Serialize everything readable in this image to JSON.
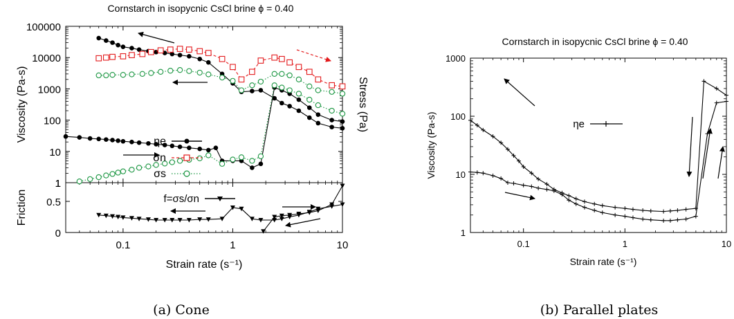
{
  "chart_data": [
    {
      "type": "line",
      "title": "Cornstarch in isopycnic CsCl brine ϕ = 0.40",
      "xlabel": "Strain rate (s⁻¹)",
      "ylabel": "Viscosity (Pa-s)",
      "y2label": "Stress (Pa)",
      "xscale": "log",
      "xlim": [
        0.03,
        10
      ],
      "yscale": "log",
      "ylim": [
        1,
        100000
      ],
      "xticks": [
        "0.1",
        "1",
        "10"
      ],
      "yticks": [
        "1",
        "10",
        "100",
        "1000",
        "10000",
        "100000"
      ],
      "series": [
        {
          "name": "ηe",
          "color": "#000000",
          "marker": "filled-circle",
          "dash": "solid",
          "x": [
            0.06,
            0.07,
            0.08,
            0.09,
            0.1,
            0.12,
            0.14,
            0.17,
            0.2,
            0.24,
            0.28,
            0.33,
            0.4,
            0.5,
            0.6,
            0.8,
            1.0,
            1.2,
            1.5,
            1.8,
            2.4,
            2.8,
            3.3,
            4.0,
            5.0,
            6.0,
            8.0,
            10.0
          ],
          "y": [
            42000,
            35000,
            30000,
            25000,
            22000,
            20000,
            18000,
            16000,
            15000,
            14000,
            13000,
            12000,
            11000,
            9000,
            7000,
            3000,
            1500,
            800,
            850,
            900,
            500,
            350,
            280,
            200,
            120,
            80,
            60,
            55
          ]
        },
        {
          "name": "σn",
          "color": "#e31a1c",
          "marker": "open-square",
          "dash": "dashed",
          "x": [
            0.06,
            0.07,
            0.08,
            0.1,
            0.12,
            0.15,
            0.18,
            0.22,
            0.27,
            0.33,
            0.4,
            0.5,
            0.6,
            0.8,
            1.0,
            1.2,
            1.5,
            1.8,
            2.4,
            2.8,
            3.3,
            4.0,
            5.0,
            6.0,
            8.0,
            10.0
          ],
          "y": [
            9500,
            10000,
            10500,
            11000,
            12000,
            13000,
            15000,
            17000,
            18000,
            19000,
            18000,
            16000,
            14000,
            9000,
            5000,
            2000,
            3500,
            8000,
            10000,
            9000,
            7000,
            5000,
            3500,
            2000,
            1300,
            1200
          ]
        },
        {
          "name": "σs",
          "color": "#1a9641",
          "marker": "open-circle",
          "dash": "dotted",
          "x": [
            0.06,
            0.07,
            0.08,
            0.1,
            0.12,
            0.15,
            0.18,
            0.22,
            0.27,
            0.33,
            0.4,
            0.5,
            0.6,
            0.8,
            1.0,
            1.2,
            1.5,
            1.8,
            2.4,
            2.8,
            3.3,
            4.0,
            5.0,
            6.0,
            8.0,
            10.0
          ],
          "y": [
            2700,
            2700,
            2800,
            2800,
            2900,
            3000,
            3200,
            3500,
            3800,
            4000,
            3700,
            3300,
            2900,
            2300,
            1800,
            900,
            1300,
            1700,
            3000,
            3000,
            2700,
            2000,
            1200,
            900,
            800,
            700
          ]
        },
        {
          "name": "",
          "color": "#000000",
          "marker": "filled-circle",
          "dash": "solid",
          "x": [
            0.03,
            0.04,
            0.05,
            0.06,
            0.07,
            0.08,
            0.09,
            0.1,
            0.12,
            0.14,
            0.17,
            0.2,
            0.24,
            0.28,
            0.33,
            0.4,
            0.5,
            0.6,
            0.7,
            0.8,
            1.0,
            1.2,
            1.5,
            1.8,
            2.4,
            2.8,
            3.3,
            4.0,
            5.0,
            6.0,
            8.0,
            10.0
          ],
          "y": [
            30,
            28,
            26,
            25,
            24,
            23,
            22,
            21,
            20,
            19,
            18,
            17,
            16,
            15,
            14,
            13,
            12,
            11,
            13,
            5,
            5,
            5,
            3,
            4,
            1100,
            900,
            700,
            450,
            250,
            150,
            100,
            90
          ]
        },
        {
          "name": "",
          "color": "#1a9641",
          "marker": "open-circle",
          "dash": "dotted",
          "x": [
            0.04,
            0.05,
            0.06,
            0.07,
            0.08,
            0.09,
            0.1,
            0.12,
            0.14,
            0.17,
            0.2,
            0.24,
            0.28,
            0.33,
            0.4,
            0.5,
            0.6,
            0.8,
            1.0,
            1.2,
            1.5,
            1.8,
            2.4,
            2.8,
            3.3,
            4.0,
            5.0,
            6.0,
            8.0,
            10.0
          ],
          "y": [
            1.1,
            1.3,
            1.5,
            1.7,
            1.9,
            2.1,
            2.3,
            2.6,
            3.0,
            3.3,
            3.7,
            4.1,
            4.5,
            5.0,
            5.4,
            6.0,
            7.5,
            4.0,
            5.5,
            6.5,
            5.0,
            7.0,
            1300,
            1100,
            900,
            700,
            450,
            300,
            200,
            160
          ]
        }
      ],
      "legend": [
        "ηe",
        "σn",
        "σs"
      ],
      "subplot": {
        "type": "line",
        "ylabel": "Friction",
        "ylim": [
          0,
          0.8
        ],
        "yticks": [
          "0",
          "0.5",
          "1"
        ],
        "series": [
          {
            "name": "f=σs/σn",
            "color": "#000000",
            "marker": "filled-triangle-down",
            "dash": "solid",
            "x": [
              0.06,
              0.07,
              0.08,
              0.09,
              0.1,
              0.12,
              0.14,
              0.17,
              0.2,
              0.24,
              0.28,
              0.33,
              0.4,
              0.5,
              0.6,
              0.8,
              1.0,
              1.2,
              1.5,
              1.8,
              2.4,
              2.8,
              3.3,
              4.0,
              5.0,
              6.0,
              8.0,
              10.0
            ],
            "y": [
              0.28,
              0.27,
              0.26,
              0.25,
              0.24,
              0.23,
              0.22,
              0.21,
              0.2,
              0.2,
              0.2,
              0.2,
              0.2,
              0.21,
              0.21,
              0.22,
              0.4,
              0.38,
              0.22,
              0.2,
              0.2,
              0.22,
              0.25,
              0.28,
              0.33,
              0.38,
              0.42,
              0.45
            ]
          },
          {
            "name": "",
            "color": "#000000",
            "marker": "filled-triangle-down",
            "dash": "solid",
            "x": [
              1.9,
              2.4,
              2.8,
              3.3,
              4.0,
              5.0,
              6.0,
              8.0,
              10.0
            ],
            "y": [
              0.02,
              0.25,
              0.27,
              0.28,
              0.3,
              0.32,
              0.35,
              0.45,
              0.75
            ]
          }
        ]
      },
      "caption": "(a) Cone"
    },
    {
      "type": "line",
      "title": "Cornstarch in isopycnic CsCl brine ϕ = 0.40",
      "xlabel": "Strain rate (s⁻¹)",
      "ylabel": "Viscosity (Pa-s)",
      "xscale": "log",
      "xlim": [
        0.03,
        10
      ],
      "yscale": "log",
      "ylim": [
        1,
        1000
      ],
      "xticks": [
        "0.1",
        "1",
        "10"
      ],
      "yticks": [
        "1",
        "10",
        "100",
        "1000"
      ],
      "series": [
        {
          "name": "ηe",
          "color": "#000000",
          "marker": "plus",
          "dash": "solid",
          "x": [
            0.03,
            0.035,
            0.04,
            0.05,
            0.06,
            0.07,
            0.08,
            0.09,
            0.1,
            0.12,
            0.14,
            0.17,
            0.2,
            0.24,
            0.28,
            0.33,
            0.4,
            0.5,
            0.6,
            0.8,
            1.0,
            1.2,
            1.5,
            1.8,
            2.4,
            2.8,
            3.3,
            4.0,
            5.0,
            6.0,
            8.0,
            10.0
          ],
          "y": [
            85,
            70,
            58,
            45,
            35,
            27,
            21,
            17,
            13.5,
            10.5,
            8.3,
            6.8,
            5.5,
            4.8,
            4.3,
            3.8,
            3.4,
            3.1,
            2.9,
            2.7,
            2.6,
            2.5,
            2.4,
            2.35,
            2.3,
            2.35,
            2.4,
            2.5,
            2.6,
            400,
            300,
            230
          ]
        },
        {
          "name": "",
          "color": "#000000",
          "marker": "plus",
          "dash": "solid",
          "x": [
            0.03,
            0.035,
            0.04,
            0.05,
            0.06,
            0.07,
            0.08,
            0.1,
            0.12,
            0.14,
            0.17,
            0.2,
            0.24,
            0.28,
            0.33,
            0.4,
            0.5,
            0.6,
            0.8,
            1.0,
            1.2,
            1.5,
            1.8,
            2.4,
            2.8,
            3.3,
            4.0,
            5.0,
            6.5,
            8.0,
            10.0
          ],
          "y": [
            11,
            10.8,
            10.5,
            9.5,
            8.5,
            7.2,
            7.0,
            6.5,
            6.2,
            5.8,
            5.5,
            5.2,
            4.5,
            3.6,
            3.1,
            2.7,
            2.4,
            2.2,
            2.0,
            1.9,
            1.8,
            1.7,
            1.65,
            1.6,
            1.6,
            1.65,
            1.7,
            1.9,
            50,
            170,
            180
          ]
        }
      ],
      "legend": [
        "ηe"
      ],
      "caption": "(b) Parallel plates"
    }
  ]
}
